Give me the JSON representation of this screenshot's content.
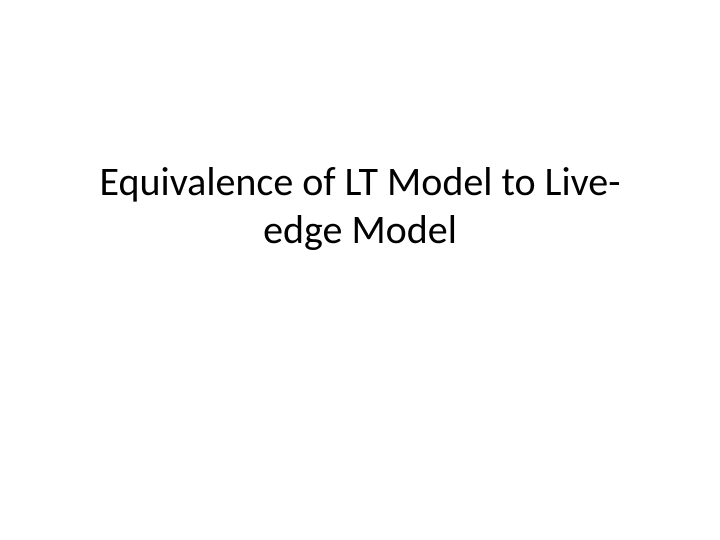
{
  "slide": {
    "title": "Equivalence of LT Model to Live-edge Model",
    "title_fontsize": 40,
    "title_color": "#000000",
    "background_color": "#ffffff",
    "font_family": "Calibri"
  }
}
